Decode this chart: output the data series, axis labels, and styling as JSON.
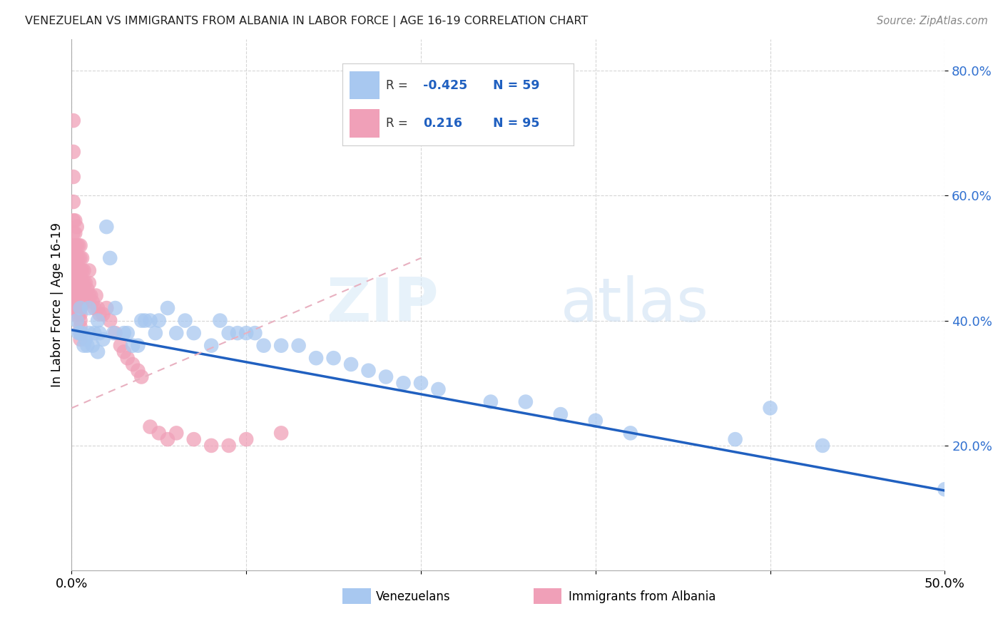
{
  "title": "VENEZUELAN VS IMMIGRANTS FROM ALBANIA IN LABOR FORCE | AGE 16-19 CORRELATION CHART",
  "source": "Source: ZipAtlas.com",
  "ylabel": "In Labor Force | Age 16-19",
  "xmin": 0.0,
  "xmax": 0.5,
  "ymin": 0.0,
  "ymax": 0.85,
  "yticks": [
    0.2,
    0.4,
    0.6,
    0.8
  ],
  "ytick_labels": [
    "20.0%",
    "40.0%",
    "60.0%",
    "80.0%"
  ],
  "xticks": [
    0.0,
    0.1,
    0.2,
    0.3,
    0.4,
    0.5
  ],
  "xtick_labels": [
    "0.0%",
    "",
    "",
    "",
    "",
    "50.0%"
  ],
  "blue_scatter_color": "#a8c8f0",
  "pink_scatter_color": "#f0a0b8",
  "blue_line_color": "#2060c0",
  "pink_line_color": "#e8b0c0",
  "tick_color": "#3070d0",
  "legend_R_blue": "-0.425",
  "legend_N_blue": "59",
  "legend_R_pink": "0.216",
  "legend_N_pink": "95",
  "watermark_zip": "ZIP",
  "watermark_atlas": "atlas",
  "blue_x": [
    0.003,
    0.004,
    0.005,
    0.005,
    0.006,
    0.007,
    0.008,
    0.009,
    0.01,
    0.01,
    0.012,
    0.013,
    0.015,
    0.015,
    0.016,
    0.018,
    0.02,
    0.022,
    0.024,
    0.025,
    0.03,
    0.032,
    0.035,
    0.038,
    0.04,
    0.042,
    0.045,
    0.048,
    0.05,
    0.055,
    0.06,
    0.065,
    0.07,
    0.08,
    0.085,
    0.09,
    0.095,
    0.1,
    0.105,
    0.11,
    0.12,
    0.13,
    0.14,
    0.15,
    0.16,
    0.17,
    0.18,
    0.19,
    0.2,
    0.21,
    0.24,
    0.26,
    0.28,
    0.3,
    0.32,
    0.38,
    0.4,
    0.43,
    0.5
  ],
  "blue_y": [
    0.4,
    0.38,
    0.42,
    0.38,
    0.38,
    0.36,
    0.37,
    0.36,
    0.38,
    0.42,
    0.36,
    0.38,
    0.4,
    0.35,
    0.38,
    0.37,
    0.55,
    0.5,
    0.38,
    0.42,
    0.38,
    0.38,
    0.36,
    0.36,
    0.4,
    0.4,
    0.4,
    0.38,
    0.4,
    0.42,
    0.38,
    0.4,
    0.38,
    0.36,
    0.4,
    0.38,
    0.38,
    0.38,
    0.38,
    0.36,
    0.36,
    0.36,
    0.34,
    0.34,
    0.33,
    0.32,
    0.31,
    0.3,
    0.3,
    0.29,
    0.27,
    0.27,
    0.25,
    0.24,
    0.22,
    0.21,
    0.26,
    0.2,
    0.13
  ],
  "pink_x": [
    0.001,
    0.001,
    0.001,
    0.001,
    0.001,
    0.001,
    0.001,
    0.001,
    0.001,
    0.001,
    0.001,
    0.001,
    0.002,
    0.002,
    0.002,
    0.002,
    0.002,
    0.002,
    0.002,
    0.002,
    0.002,
    0.002,
    0.002,
    0.002,
    0.003,
    0.003,
    0.003,
    0.003,
    0.003,
    0.003,
    0.003,
    0.003,
    0.003,
    0.004,
    0.004,
    0.004,
    0.004,
    0.004,
    0.004,
    0.004,
    0.004,
    0.005,
    0.005,
    0.005,
    0.005,
    0.005,
    0.005,
    0.005,
    0.005,
    0.005,
    0.005,
    0.005,
    0.005,
    0.005,
    0.005,
    0.006,
    0.006,
    0.006,
    0.006,
    0.006,
    0.007,
    0.007,
    0.007,
    0.008,
    0.008,
    0.008,
    0.009,
    0.01,
    0.01,
    0.01,
    0.011,
    0.012,
    0.013,
    0.014,
    0.015,
    0.016,
    0.018,
    0.02,
    0.022,
    0.025,
    0.028,
    0.03,
    0.032,
    0.035,
    0.038,
    0.04,
    0.045,
    0.05,
    0.055,
    0.06,
    0.07,
    0.08,
    0.09,
    0.1,
    0.12
  ],
  "pink_y": [
    0.72,
    0.67,
    0.63,
    0.59,
    0.56,
    0.54,
    0.52,
    0.51,
    0.5,
    0.49,
    0.48,
    0.47,
    0.56,
    0.54,
    0.52,
    0.5,
    0.48,
    0.47,
    0.46,
    0.45,
    0.44,
    0.43,
    0.42,
    0.41,
    0.55,
    0.52,
    0.5,
    0.48,
    0.46,
    0.45,
    0.44,
    0.43,
    0.42,
    0.52,
    0.5,
    0.48,
    0.46,
    0.44,
    0.43,
    0.42,
    0.41,
    0.52,
    0.5,
    0.48,
    0.47,
    0.46,
    0.45,
    0.44,
    0.43,
    0.42,
    0.41,
    0.4,
    0.39,
    0.38,
    0.37,
    0.5,
    0.48,
    0.46,
    0.44,
    0.43,
    0.48,
    0.46,
    0.44,
    0.46,
    0.44,
    0.43,
    0.45,
    0.48,
    0.46,
    0.44,
    0.44,
    0.43,
    0.42,
    0.44,
    0.42,
    0.41,
    0.41,
    0.42,
    0.4,
    0.38,
    0.36,
    0.35,
    0.34,
    0.33,
    0.32,
    0.31,
    0.23,
    0.22,
    0.21,
    0.22,
    0.21,
    0.2,
    0.2,
    0.21,
    0.22
  ],
  "blue_trend_x0": 0.0,
  "blue_trend_y0": 0.385,
  "blue_trend_x1": 0.5,
  "blue_trend_y1": 0.128,
  "pink_trend_x0": 0.0,
  "pink_trend_y0": 0.26,
  "pink_trend_x1": 0.2,
  "pink_trend_y1": 0.5
}
